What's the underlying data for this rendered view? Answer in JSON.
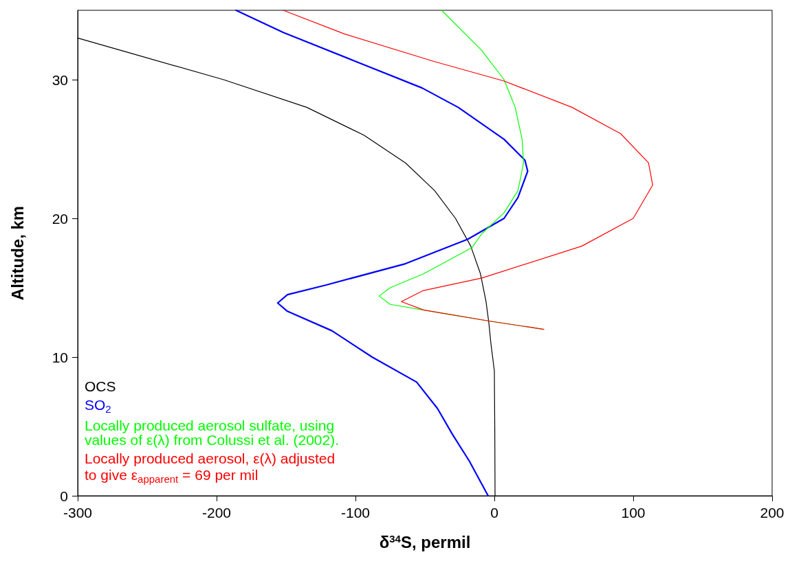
{
  "chart_data": {
    "type": "line",
    "xlabel": "δ$^{34}$S, permil",
    "ylabel": "Altitude, km",
    "xlim": [
      -300,
      200
    ],
    "xticks": [
      -300,
      -200,
      -100,
      0,
      100,
      200
    ],
    "ylim": [
      0,
      35
    ],
    "yticks": [
      0,
      10,
      20,
      30
    ],
    "grid": false,
    "legend": "bottom left",
    "marker": "none",
    "line_style": "solid",
    "series": [
      {
        "name": "OCS",
        "color": "#000000",
        "x": [
          0.5,
          0.3,
          0,
          -2.5,
          -4,
          -6,
          -10,
          -17,
          -28,
          -43,
          -64,
          -94,
          -135,
          -195,
          -265,
          -300
        ],
        "values": [
          0,
          5,
          9,
          11,
          12.5,
          14,
          16,
          18,
          20,
          22,
          24,
          26,
          28,
          30,
          32,
          33
        ]
      },
      {
        "name": "SO$_{2}$",
        "color": "#0000ff",
        "x": [
          -4.5,
          -18,
          -30,
          -41,
          -56,
          -88,
          -117,
          -149,
          -156,
          -149,
          -121,
          -65,
          -19,
          7,
          17,
          24,
          22,
          7,
          -26,
          -52,
          -102,
          -152,
          -186
        ],
        "values": [
          0,
          2.5,
          4.4,
          6.3,
          8.2,
          10,
          11.9,
          13.3,
          13.9,
          14.5,
          15.2,
          16.7,
          18.5,
          20,
          21.5,
          23.4,
          24.2,
          25.7,
          28,
          29.4,
          31.4,
          33.4,
          35
        ]
      },
      {
        "name": "Locally produced aerosol sulfate, using\nvalues of ε(λ) from Colussi et al. (2002).",
        "color": "#00ff00",
        "x": [
          35.6,
          -3.9,
          -34,
          -75,
          -83,
          -75,
          -51,
          -16,
          -9,
          7,
          17,
          21,
          20,
          15,
          7,
          -9,
          -38
        ],
        "values": [
          12,
          12.6,
          13.1,
          13.8,
          14.4,
          15,
          16,
          17.9,
          18.9,
          20.4,
          22,
          24,
          25.7,
          28,
          30,
          32.1,
          35
        ]
      },
      {
        "name": "Locally produced aerosol, ε(λ) adjusted\nto give ε$_{apparent}$ = 69 per mil",
        "color": "#ff0000",
        "x": [
          35.6,
          -3.9,
          -51,
          -67,
          -51,
          -9,
          63,
          100,
          114,
          111,
          91,
          56,
          7,
          -43,
          -108,
          -152
        ],
        "values": [
          12,
          12.6,
          13.4,
          14,
          14.8,
          15.7,
          18,
          20,
          22.4,
          24,
          26.1,
          28,
          29.9,
          31.3,
          33.3,
          35
        ]
      }
    ]
  }
}
